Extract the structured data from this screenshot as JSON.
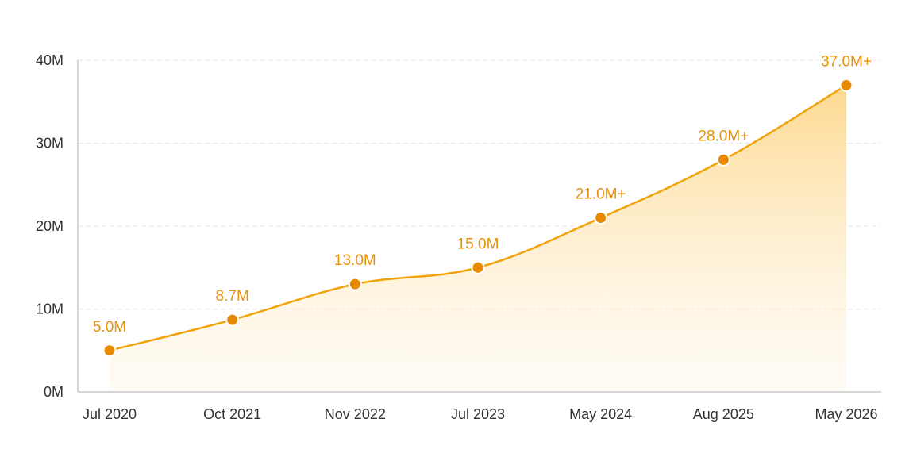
{
  "chart_data": {
    "type": "area",
    "title": "",
    "xlabel": "",
    "ylabel": "",
    "categories": [
      "Jul 2020",
      "Oct 2021",
      "Nov 2022",
      "Jul 2023",
      "May 2024",
      "Aug 2025",
      "May 2026"
    ],
    "values": [
      5.0,
      8.7,
      13.0,
      15.0,
      21.0,
      28.0,
      37.0
    ],
    "data_labels": [
      "5.0M",
      "8.7M",
      "13.0M",
      "15.0M",
      "21.0M+",
      "28.0M+",
      "37.0M+"
    ],
    "ylim": [
      0,
      40
    ],
    "yticks": [
      0,
      10,
      20,
      30,
      40
    ],
    "ytick_labels": [
      "0M",
      "10M",
      "20M",
      "30M",
      "40M"
    ],
    "unit": "M",
    "grid": true,
    "legend": "none",
    "colors": {
      "line": "#f0a30a",
      "marker": "#e88a00",
      "label": "#e8910a",
      "fill_top": "#fdd78a",
      "fill_bottom": "#fff6e6"
    }
  }
}
